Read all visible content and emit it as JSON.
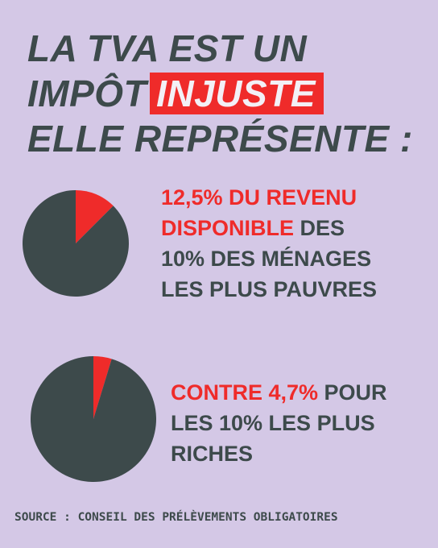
{
  "headline": {
    "line1": "LA TVA EST UN",
    "line2_prefix": "IMPÔT",
    "line2_highlight": "INJUSTE",
    "line3": "ELLE REPRÉSENTE :"
  },
  "caption1": {
    "red1": "12,5% DU REVENU",
    "red2": "DISPONIBLE",
    "rest2": " DES",
    "line3": "10% DES MÉNAGES",
    "line4": "LES PLUS PAUVRES"
  },
  "caption2": {
    "red1": "CONTRE 4,7%",
    "rest1": " POUR",
    "line2": "LES 10% LES PLUS",
    "line3": "RICHES"
  },
  "source": "SOURCE : CONSEIL DES PRÉLÈVEMENTS OBLIGATOIRES",
  "colors": {
    "background": "#d4c8e6",
    "dark": "#3d4a4b",
    "accent": "#ef2b2a"
  },
  "chart_data": [
    {
      "type": "pie",
      "values": [
        12.5,
        87.5
      ],
      "colors": [
        "#ef2b2a",
        "#3d4a4b"
      ]
    },
    {
      "type": "pie",
      "values": [
        4.7,
        95.3
      ],
      "colors": [
        "#ef2b2a",
        "#3d4a4b"
      ]
    }
  ]
}
